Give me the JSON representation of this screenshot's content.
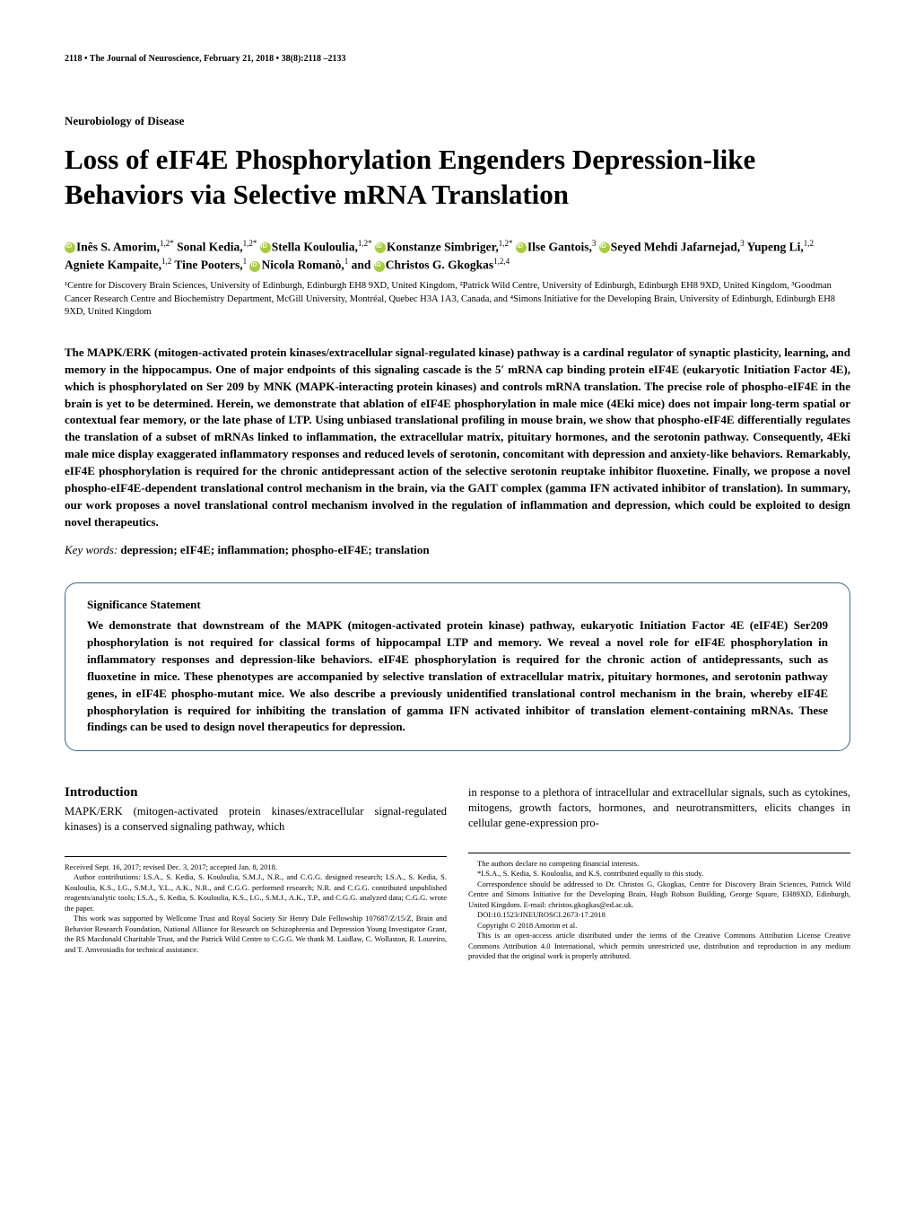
{
  "header": {
    "text": "2118 • The Journal of Neuroscience, February 21, 2018 • 38(8):2118 –2133"
  },
  "section_label": "Neurobiology of Disease",
  "title": "Loss of eIF4E Phosphorylation Engenders Depression-like Behaviors via Selective mRNA Translation",
  "authors_html": "<span class='orcid'></span>Inês S. Amorim,<span class='sup'>1,2*</span> Sonal Kedia,<span class='sup'>1,2*</span> <span class='orcid'></span>Stella Kouloulia,<span class='sup'>1,2*</span> <span class='orcid'></span>Konstanze Simbriger,<span class='sup'>1,2*</span> <span class='orcid'></span>Ilse Gantois,<span class='sup'>3</span> <span class='orcid'></span>Seyed Mehdi Jafarnejad,<span class='sup'>3</span> Yupeng Li,<span class='sup'>1,2</span> Agniete Kampaite,<span class='sup'>1,2</span> Tine Pooters,<span class='sup'>1</span> <span class='orcid'></span>Nicola Romanò,<span class='sup'>1</span> and <span class='orcid'></span>Christos G. Gkogkas<span class='sup'>1,2,4</span>",
  "affiliations": "¹Centre for Discovery Brain Sciences, University of Edinburgh, Edinburgh EH8 9XD, United Kingdom, ²Patrick Wild Centre, University of Edinburgh, Edinburgh EH8 9XD, United Kingdom, ³Goodman Cancer Research Centre and Biochemistry Department, McGill University, Montréal, Quebec H3A 1A3, Canada, and ⁴Simons Initiative for the Developing Brain, University of Edinburgh, Edinburgh EH8 9XD, United Kingdom",
  "abstract": "The MAPK/ERK (mitogen-activated protein kinases/extracellular signal-regulated kinase) pathway is a cardinal regulator of synaptic plasticity, learning, and memory in the hippocampus. One of major endpoints of this signaling cascade is the 5′ mRNA cap binding protein eIF4E (eukaryotic Initiation Factor 4E), which is phosphorylated on Ser 209 by MNK (MAPK-interacting protein kinases) and controls mRNA translation. The precise role of phospho-eIF4E in the brain is yet to be determined. Herein, we demonstrate that ablation of eIF4E phosphorylation in male mice (4Eki mice) does not impair long-term spatial or contextual fear memory, or the late phase of LTP. Using unbiased translational profiling in mouse brain, we show that phospho-eIF4E differentially regulates the translation of a subset of mRNAs linked to inflammation, the extracellular matrix, pituitary hormones, and the serotonin pathway. Consequently, 4Eki male mice display exaggerated inflammatory responses and reduced levels of serotonin, concomitant with depression and anxiety-like behaviors. Remarkably, eIF4E phosphorylation is required for the chronic antidepressant action of the selective serotonin reuptake inhibitor fluoxetine. Finally, we propose a novel phospho-eIF4E-dependent translational control mechanism in the brain, via the GAIT complex (gamma IFN activated inhibitor of translation). In summary, our work proposes a novel translational control mechanism involved in the regulation of inflammation and depression, which could be exploited to design novel therapeutics.",
  "keywords": {
    "label": "Key words:",
    "text": " depression; eIF4E; inflammation; phospho-eIF4E; translation"
  },
  "significance": {
    "title": "Significance Statement",
    "text": "We demonstrate that downstream of the MAPK (mitogen-activated protein kinase) pathway, eukaryotic Initiation Factor 4E (eIF4E) Ser209 phosphorylation is not required for classical forms of hippocampal LTP and memory. We reveal a novel role for eIF4E phosphorylation in inflammatory responses and depression-like behaviors. eIF4E phosphorylation is required for the chronic action of antidepressants, such as fluoxetine in mice. These phenotypes are accompanied by selective translation of extracellular matrix, pituitary hormones, and serotonin pathway genes, in eIF4E phospho-mutant mice. We also describe a previously unidentified translational control mechanism in the brain, whereby eIF4E phosphorylation is required for inhibiting the translation of gamma IFN activated inhibitor of translation element-containing mRNAs. These findings can be used to design novel therapeutics for depression."
  },
  "introduction": {
    "heading": "Introduction",
    "col1": "MAPK/ERK (mitogen-activated protein kinases/extracellular signal-regulated kinases) is a conserved signaling pathway, which",
    "col2": "in response to a plethora of intracellular and extracellular signals, such as cytokines, mitogens, growth factors, hormones, and neurotransmitters, elicits changes in cellular gene-expression pro-"
  },
  "footnotes_left": [
    "Received Sept. 16, 2017; revised Dec. 3, 2017; accepted Jan. 8, 2018.",
    "Author contributions: I.S.A., S. Kedia, S. Kouloulia, S.M.J., N.R., and C.G.G. designed research; I.S.A., S. Kedia, S. Kouloulia, K.S., I.G., S.M.J., Y.L., A.K., N.R., and C.G.G. performed research; N.R. and C.G.G. contributed unpublished reagents/analytic tools; I.S.A., S. Kedia, S. Kouloulia, K.S., I.G., S.M.J., A.K., T.P., and C.G.G. analyzed data; C.G.G. wrote the paper.",
    "This work was supported by Wellcome Trust and Royal Society Sir Henry Dale Fellowship 107687/Z/15/Z, Brain and Behavior Research Foundation, National Alliance for Research on Schizophrenia and Depression Young Investigator Grant, the RS Macdonald Charitable Trust, and the Patrick Wild Centre to C.G.G. We thank M. Laidlaw, C. Wollaston, R. Loureiro, and T. Amvrosiadis for technical assistance."
  ],
  "footnotes_right": [
    "The authors declare no competing financial interests.",
    "*I.S.A., S. Kedia, S. Kouloulia, and K.S. contributed equally to this study.",
    "Correspondence should be addressed to Dr. Christos G. Gkogkas, Centre for Discovery Brain Sciences, Patrick Wild Centre and Simons Initiative for the Developing Brain, Hugh Robson Building, George Square, EH89XD, Edinburgh, United Kingdom. E-mail: christos.gkogkas@ed.ac.uk.",
    "DOI:10.1523/JNEUROSCI.2673-17.2018",
    "Copyright © 2018 Amorim et al.",
    "This is an open-access article distributed under the terms of the Creative Commons Attribution License Creative Commons Attribution 4.0 International, which permits unrestricted use, distribution and reproduction in any medium provided that the original work is properly attributed."
  ],
  "colors": {
    "border": "#3a6a8f",
    "orcid": "#a6ce39",
    "text": "#000000",
    "bg": "#ffffff"
  },
  "typography": {
    "title_size": 31,
    "body_size": 13,
    "footnote_size": 8.5,
    "header_size": 10
  }
}
